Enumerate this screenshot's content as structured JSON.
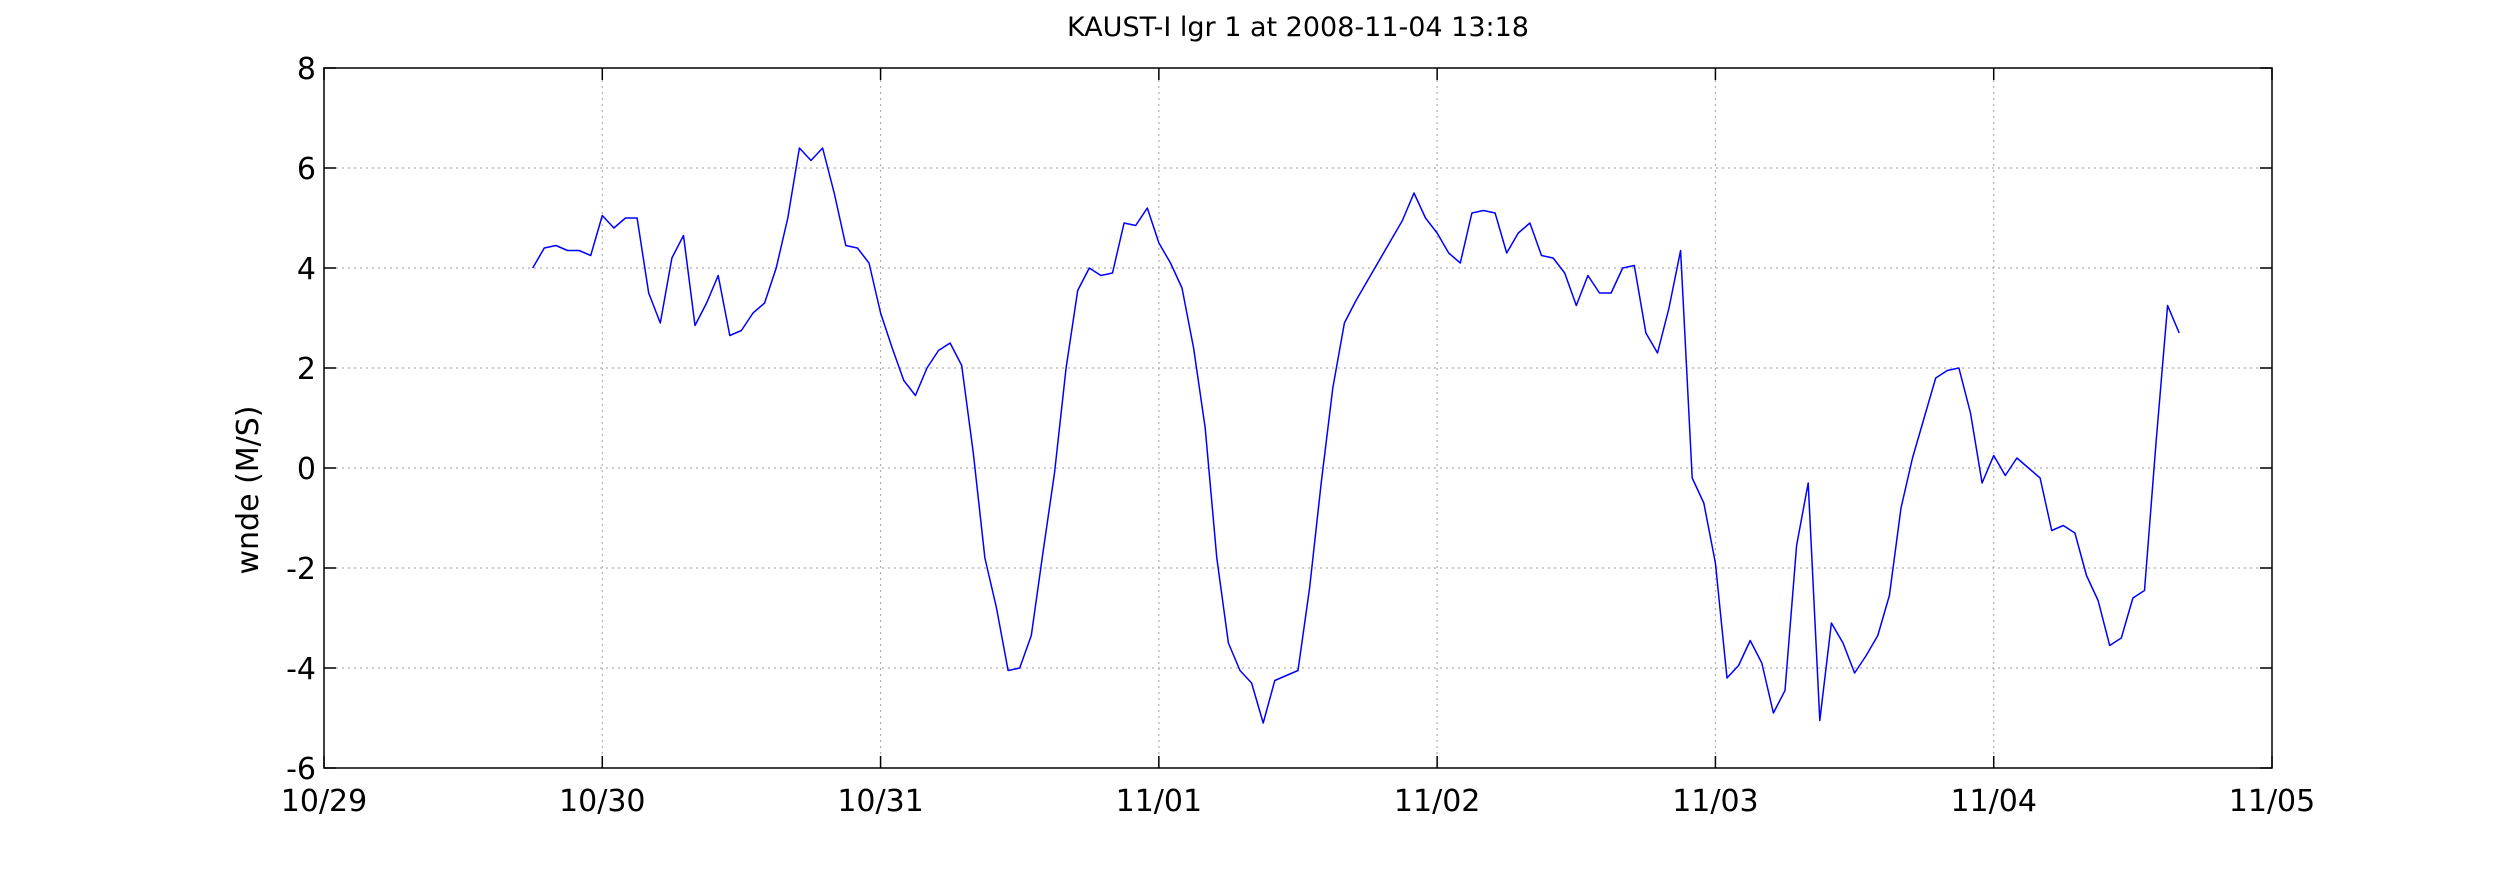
{
  "chart_data": {
    "type": "line",
    "title": "KAUST-I lgr 1 at 2008-11-04 13:18",
    "xlabel": "",
    "ylabel": "wnde (M/S)",
    "xlim": [
      "2008-10-29",
      "2008-11-05"
    ],
    "ylim": [
      -6,
      8
    ],
    "x_ticks": [
      "10/29",
      "10/30",
      "10/31",
      "11/01",
      "11/02",
      "11/03",
      "11/04",
      "11/05"
    ],
    "y_ticks": [
      -6,
      -4,
      -2,
      0,
      2,
      4,
      6,
      8
    ],
    "grid": true,
    "colors": {
      "series": "#0000ff",
      "axes": "#000000",
      "grid": "#b0b0b0"
    },
    "series": [
      {
        "color": "#0000ff",
        "points": [
          {
            "x": "2008-10-29 18:00",
            "y": 4.0
          },
          {
            "x": "2008-10-29 19:00",
            "y": 4.4
          },
          {
            "x": "2008-10-29 20:00",
            "y": 4.45
          },
          {
            "x": "2008-10-29 21:00",
            "y": 4.35
          },
          {
            "x": "2008-10-29 22:00",
            "y": 4.35
          },
          {
            "x": "2008-10-29 23:00",
            "y": 4.25
          },
          {
            "x": "2008-10-30 00:00",
            "y": 5.05
          },
          {
            "x": "2008-10-30 01:00",
            "y": 4.8
          },
          {
            "x": "2008-10-30 02:00",
            "y": 5.0
          },
          {
            "x": "2008-10-30 03:00",
            "y": 5.0
          },
          {
            "x": "2008-10-30 04:00",
            "y": 3.5
          },
          {
            "x": "2008-10-30 05:00",
            "y": 2.9
          },
          {
            "x": "2008-10-30 06:00",
            "y": 4.2
          },
          {
            "x": "2008-10-30 07:00",
            "y": 4.65
          },
          {
            "x": "2008-10-30 08:00",
            "y": 2.85
          },
          {
            "x": "2008-10-30 09:00",
            "y": 3.3
          },
          {
            "x": "2008-10-30 10:00",
            "y": 3.85
          },
          {
            "x": "2008-10-30 11:00",
            "y": 2.65
          },
          {
            "x": "2008-10-30 12:00",
            "y": 2.75
          },
          {
            "x": "2008-10-30 13:00",
            "y": 3.1
          },
          {
            "x": "2008-10-30 14:00",
            "y": 3.3
          },
          {
            "x": "2008-10-30 15:00",
            "y": 4.0
          },
          {
            "x": "2008-10-30 16:00",
            "y": 5.0
          },
          {
            "x": "2008-10-30 17:00",
            "y": 6.4
          },
          {
            "x": "2008-10-30 18:00",
            "y": 6.15
          },
          {
            "x": "2008-10-30 19:00",
            "y": 6.4
          },
          {
            "x": "2008-10-30 20:00",
            "y": 5.5
          },
          {
            "x": "2008-10-30 21:00",
            "y": 4.45
          },
          {
            "x": "2008-10-30 22:00",
            "y": 4.4
          },
          {
            "x": "2008-10-30 23:00",
            "y": 4.1
          },
          {
            "x": "2008-10-31 00:00",
            "y": 3.1
          },
          {
            "x": "2008-10-31 01:00",
            "y": 2.4
          },
          {
            "x": "2008-10-31 02:00",
            "y": 1.75
          },
          {
            "x": "2008-10-31 03:00",
            "y": 1.45
          },
          {
            "x": "2008-10-31 04:00",
            "y": 2.0
          },
          {
            "x": "2008-10-31 05:00",
            "y": 2.35
          },
          {
            "x": "2008-10-31 06:00",
            "y": 2.5
          },
          {
            "x": "2008-10-31 07:00",
            "y": 2.05
          },
          {
            "x": "2008-10-31 08:00",
            "y": 0.3
          },
          {
            "x": "2008-10-31 09:00",
            "y": -1.8
          },
          {
            "x": "2008-10-31 10:00",
            "y": -2.8
          },
          {
            "x": "2008-10-31 11:00",
            "y": -4.05
          },
          {
            "x": "2008-10-31 12:00",
            "y": -4.0
          },
          {
            "x": "2008-10-31 13:00",
            "y": -3.35
          },
          {
            "x": "2008-10-31 14:00",
            "y": -1.7
          },
          {
            "x": "2008-10-31 15:00",
            "y": -0.1
          },
          {
            "x": "2008-10-31 16:00",
            "y": 2.0
          },
          {
            "x": "2008-10-31 17:00",
            "y": 3.55
          },
          {
            "x": "2008-10-31 18:00",
            "y": 4.0
          },
          {
            "x": "2008-10-31 19:00",
            "y": 3.85
          },
          {
            "x": "2008-10-31 20:00",
            "y": 3.9
          },
          {
            "x": "2008-10-31 21:00",
            "y": 4.9
          },
          {
            "x": "2008-10-31 22:00",
            "y": 4.85
          },
          {
            "x": "2008-10-31 23:00",
            "y": 5.2
          },
          {
            "x": "2008-11-01 00:00",
            "y": 4.5
          },
          {
            "x": "2008-11-01 01:00",
            "y": 4.1
          },
          {
            "x": "2008-11-01 02:00",
            "y": 3.6
          },
          {
            "x": "2008-11-01 03:00",
            "y": 2.4
          },
          {
            "x": "2008-11-01 04:00",
            "y": 0.8
          },
          {
            "x": "2008-11-01 05:00",
            "y": -1.8
          },
          {
            "x": "2008-11-01 06:00",
            "y": -3.5
          },
          {
            "x": "2008-11-01 07:00",
            "y": -4.05
          },
          {
            "x": "2008-11-01 08:00",
            "y": -4.3
          },
          {
            "x": "2008-11-01 09:00",
            "y": -5.1
          },
          {
            "x": "2008-11-01 10:00",
            "y": -4.25
          },
          {
            "x": "2008-11-01 11:00",
            "y": -4.15
          },
          {
            "x": "2008-11-01 12:00",
            "y": -4.05
          },
          {
            "x": "2008-11-01 13:00",
            "y": -2.4
          },
          {
            "x": "2008-11-01 14:00",
            "y": -0.3
          },
          {
            "x": "2008-11-01 15:00",
            "y": 1.6
          },
          {
            "x": "2008-11-01 16:00",
            "y": 2.9
          },
          {
            "x": "2008-11-01 17:00",
            "y": 3.35
          },
          {
            "x": "2008-11-01 18:00",
            "y": 3.75
          },
          {
            "x": "2008-11-01 19:00",
            "y": 4.15
          },
          {
            "x": "2008-11-01 20:00",
            "y": 4.55
          },
          {
            "x": "2008-11-01 21:00",
            "y": 4.95
          },
          {
            "x": "2008-11-01 22:00",
            "y": 5.5
          },
          {
            "x": "2008-11-01 23:00",
            "y": 5.0
          },
          {
            "x": "2008-11-02 00:00",
            "y": 4.7
          },
          {
            "x": "2008-11-02 01:00",
            "y": 4.3
          },
          {
            "x": "2008-11-02 02:00",
            "y": 4.1
          },
          {
            "x": "2008-11-02 03:00",
            "y": 5.1
          },
          {
            "x": "2008-11-02 04:00",
            "y": 5.15
          },
          {
            "x": "2008-11-02 05:00",
            "y": 5.1
          },
          {
            "x": "2008-11-02 06:00",
            "y": 4.3
          },
          {
            "x": "2008-11-02 07:00",
            "y": 4.7
          },
          {
            "x": "2008-11-02 08:00",
            "y": 4.9
          },
          {
            "x": "2008-11-02 09:00",
            "y": 4.25
          },
          {
            "x": "2008-11-02 10:00",
            "y": 4.2
          },
          {
            "x": "2008-11-02 11:00",
            "y": 3.9
          },
          {
            "x": "2008-11-02 12:00",
            "y": 3.25
          },
          {
            "x": "2008-11-02 13:00",
            "y": 3.85
          },
          {
            "x": "2008-11-02 14:00",
            "y": 3.5
          },
          {
            "x": "2008-11-02 15:00",
            "y": 3.5
          },
          {
            "x": "2008-11-02 16:00",
            "y": 4.0
          },
          {
            "x": "2008-11-02 17:00",
            "y": 4.05
          },
          {
            "x": "2008-11-02 18:00",
            "y": 2.7
          },
          {
            "x": "2008-11-02 19:00",
            "y": 2.3
          },
          {
            "x": "2008-11-02 20:00",
            "y": 3.2
          },
          {
            "x": "2008-11-02 21:00",
            "y": 4.35
          },
          {
            "x": "2008-11-02 22:00",
            "y": -0.2
          },
          {
            "x": "2008-11-02 23:00",
            "y": -0.7
          },
          {
            "x": "2008-11-03 00:00",
            "y": -1.9
          },
          {
            "x": "2008-11-03 01:00",
            "y": -4.2
          },
          {
            "x": "2008-11-03 02:00",
            "y": -3.95
          },
          {
            "x": "2008-11-03 03:00",
            "y": -3.45
          },
          {
            "x": "2008-11-03 04:00",
            "y": -3.9
          },
          {
            "x": "2008-11-03 05:00",
            "y": -4.9
          },
          {
            "x": "2008-11-03 06:00",
            "y": -4.45
          },
          {
            "x": "2008-11-03 07:00",
            "y": -1.55
          },
          {
            "x": "2008-11-03 08:00",
            "y": -0.3
          },
          {
            "x": "2008-11-03 09:00",
            "y": -5.05
          },
          {
            "x": "2008-11-03 10:00",
            "y": -3.1
          },
          {
            "x": "2008-11-03 11:00",
            "y": -3.5
          },
          {
            "x": "2008-11-03 12:00",
            "y": -4.1
          },
          {
            "x": "2008-11-03 13:00",
            "y": -3.75
          },
          {
            "x": "2008-11-03 14:00",
            "y": -3.35
          },
          {
            "x": "2008-11-03 15:00",
            "y": -2.55
          },
          {
            "x": "2008-11-03 16:00",
            "y": -0.8
          },
          {
            "x": "2008-11-03 17:00",
            "y": 0.2
          },
          {
            "x": "2008-11-03 18:00",
            "y": 1.0
          },
          {
            "x": "2008-11-03 19:00",
            "y": 1.8
          },
          {
            "x": "2008-11-03 20:00",
            "y": 1.95
          },
          {
            "x": "2008-11-03 21:00",
            "y": 2.0
          },
          {
            "x": "2008-11-03 22:00",
            "y": 1.1
          },
          {
            "x": "2008-11-03 23:00",
            "y": -0.3
          },
          {
            "x": "2008-11-04 00:00",
            "y": 0.25
          },
          {
            "x": "2008-11-04 01:00",
            "y": -0.15
          },
          {
            "x": "2008-11-04 02:00",
            "y": 0.2
          },
          {
            "x": "2008-11-04 03:00",
            "y": 0.0
          },
          {
            "x": "2008-11-04 04:00",
            "y": -0.2
          },
          {
            "x": "2008-11-04 05:00",
            "y": -1.25
          },
          {
            "x": "2008-11-04 06:00",
            "y": -1.15
          },
          {
            "x": "2008-11-04 07:00",
            "y": -1.3
          },
          {
            "x": "2008-11-04 08:00",
            "y": -2.15
          },
          {
            "x": "2008-11-04 09:00",
            "y": -2.65
          },
          {
            "x": "2008-11-04 10:00",
            "y": -3.55
          },
          {
            "x": "2008-11-04 11:00",
            "y": -3.4
          },
          {
            "x": "2008-11-04 12:00",
            "y": -2.6
          },
          {
            "x": "2008-11-04 13:00",
            "y": -2.45
          },
          {
            "x": "2008-11-04 14:00",
            "y": 0.5
          },
          {
            "x": "2008-11-04 15:00",
            "y": 3.25
          },
          {
            "x": "2008-11-04 16:00",
            "y": 2.7
          }
        ]
      }
    ]
  }
}
